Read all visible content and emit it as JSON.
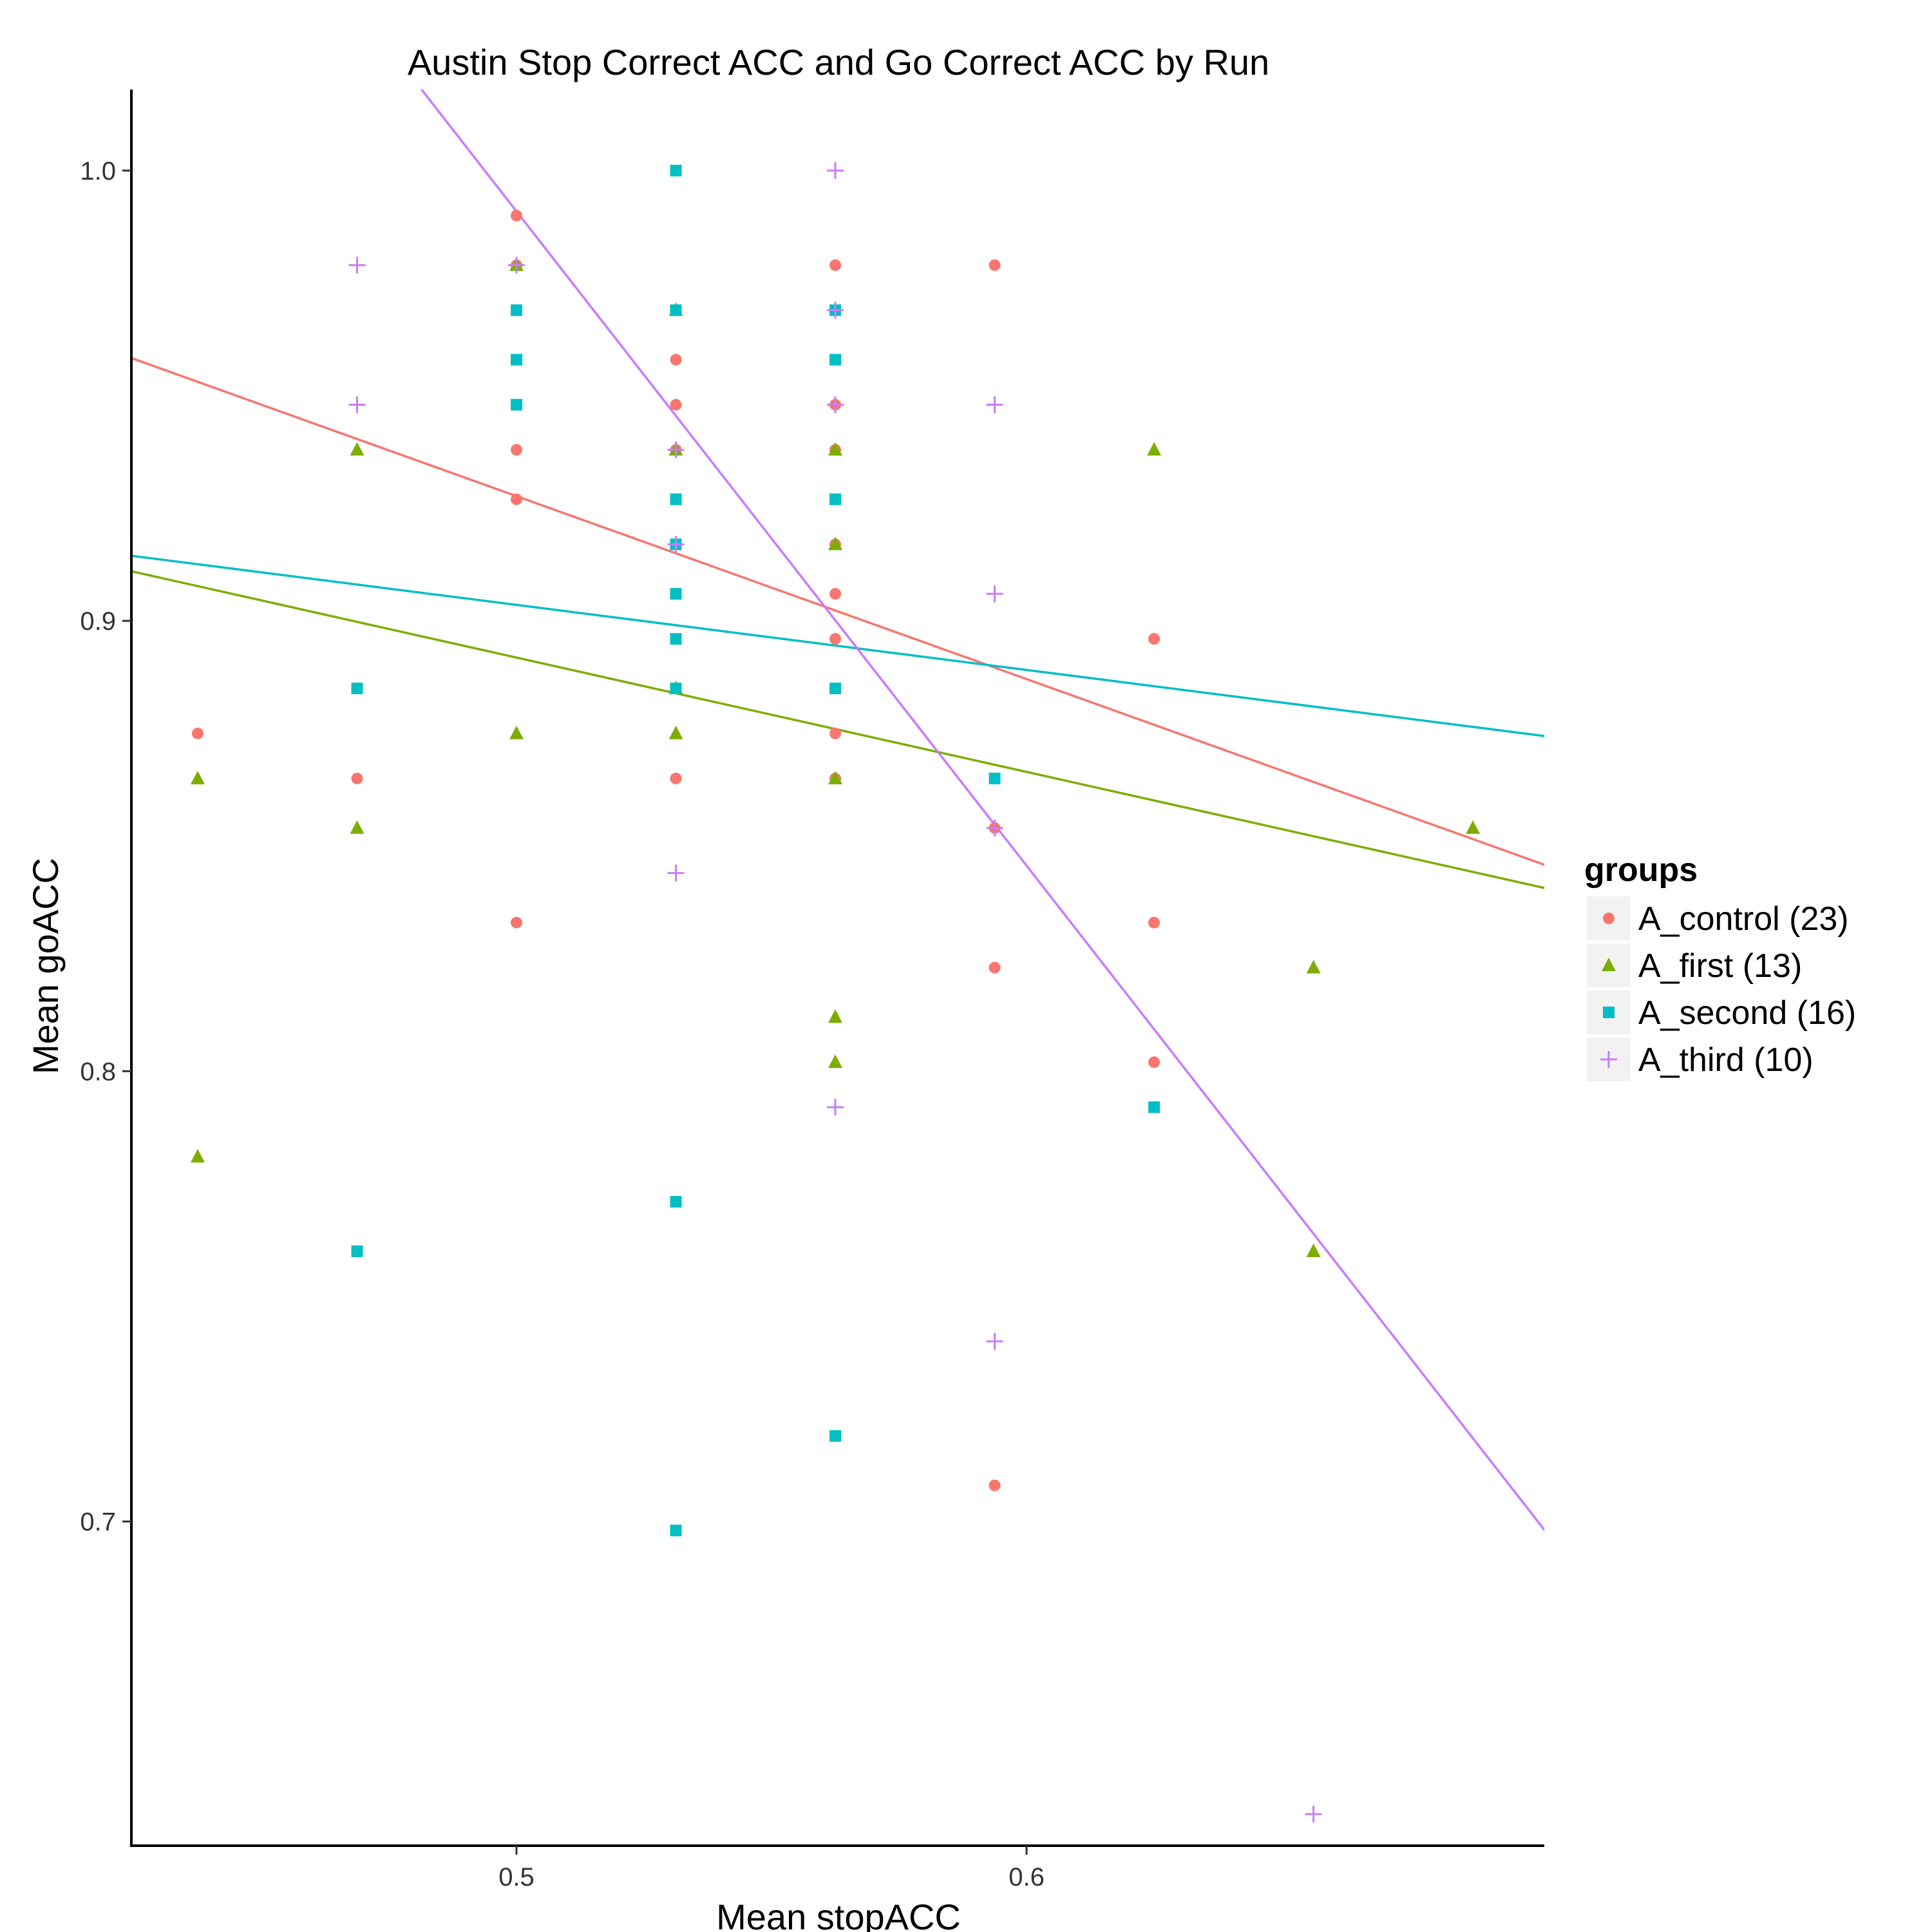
{
  "chart_data": {
    "type": "scatter",
    "title": "Austin Stop Correct ACC and Go Correct ACC by Run",
    "xlabel": "Mean stopACC",
    "ylabel": "Mean goACC",
    "xlim": [
      0.4245,
      0.7015
    ],
    "ylim": [
      0.628,
      1.018
    ],
    "xticks": [
      0.5,
      0.6
    ],
    "xtick_labels": [
      "0.5",
      "0.6"
    ],
    "yticks": [
      0.7,
      0.8,
      0.9,
      1.0
    ],
    "ytick_labels": [
      "0.7",
      "0.8",
      "0.9",
      "1.0"
    ],
    "grid": false,
    "legend": {
      "title": "groups",
      "position": "right"
    },
    "series": [
      {
        "name": "A_control (23)",
        "color": "#F8766D",
        "shape": "circle",
        "points": [
          [
            0.4375,
            0.875
          ],
          [
            0.46875,
            0.865
          ],
          [
            0.5,
            0.99
          ],
          [
            0.5,
            0.979
          ],
          [
            0.5,
            0.969
          ],
          [
            0.5,
            0.948
          ],
          [
            0.5,
            0.938
          ],
          [
            0.5,
            0.927
          ],
          [
            0.5,
            0.833
          ],
          [
            0.53125,
            0.969
          ],
          [
            0.53125,
            0.958
          ],
          [
            0.53125,
            0.948
          ],
          [
            0.53125,
            0.938
          ],
          [
            0.53125,
            0.927
          ],
          [
            0.53125,
            0.906
          ],
          [
            0.53125,
            0.865
          ],
          [
            0.5625,
            0.979
          ],
          [
            0.5625,
            0.958
          ],
          [
            0.5625,
            0.948
          ],
          [
            0.5625,
            0.938
          ],
          [
            0.5625,
            0.917
          ],
          [
            0.5625,
            0.906
          ],
          [
            0.5625,
            0.896
          ],
          [
            0.5625,
            0.875
          ],
          [
            0.5625,
            0.865
          ],
          [
            0.5625,
            0.719
          ],
          [
            0.59375,
            0.979
          ],
          [
            0.59375,
            0.854
          ],
          [
            0.59375,
            0.823
          ],
          [
            0.59375,
            0.708
          ],
          [
            0.625,
            0.896
          ],
          [
            0.625,
            0.833
          ],
          [
            0.625,
            0.802
          ]
        ],
        "fit": {
          "intercept": 1.1308,
          "slope": -0.4062
        }
      },
      {
        "name": "A_first (13)",
        "color": "#7CAE00",
        "shape": "triangle",
        "points": [
          [
            0.4375,
            0.865
          ],
          [
            0.4375,
            0.781
          ],
          [
            0.46875,
            0.938
          ],
          [
            0.46875,
            0.854
          ],
          [
            0.5,
            0.979
          ],
          [
            0.5,
            0.875
          ],
          [
            0.53125,
            0.969
          ],
          [
            0.53125,
            0.938
          ],
          [
            0.53125,
            0.885
          ],
          [
            0.53125,
            0.875
          ],
          [
            0.5625,
            0.938
          ],
          [
            0.5625,
            0.917
          ],
          [
            0.5625,
            0.865
          ],
          [
            0.5625,
            0.812
          ],
          [
            0.5625,
            0.802
          ],
          [
            0.625,
            0.938
          ],
          [
            0.65625,
            0.823
          ],
          [
            0.65625,
            0.76
          ],
          [
            0.6875,
            0.854
          ]
        ],
        "fit": {
          "intercept": 1.0188,
          "slope": -0.2539
        }
      },
      {
        "name": "A_second (16)",
        "color": "#00BFC4",
        "shape": "square",
        "points": [
          [
            0.46875,
            0.885
          ],
          [
            0.46875,
            0.76
          ],
          [
            0.5,
            0.969
          ],
          [
            0.5,
            0.958
          ],
          [
            0.5,
            0.948
          ],
          [
            0.53125,
            1.0
          ],
          [
            0.53125,
            0.969
          ],
          [
            0.53125,
            0.927
          ],
          [
            0.53125,
            0.917
          ],
          [
            0.53125,
            0.906
          ],
          [
            0.53125,
            0.896
          ],
          [
            0.53125,
            0.885
          ],
          [
            0.53125,
            0.771
          ],
          [
            0.53125,
            0.698
          ],
          [
            0.5625,
            0.969
          ],
          [
            0.5625,
            0.958
          ],
          [
            0.5625,
            0.927
          ],
          [
            0.5625,
            0.885
          ],
          [
            0.5625,
            0.719
          ],
          [
            0.59375,
            0.865
          ],
          [
            0.625,
            0.792
          ]
        ],
        "fit": {
          "intercept": 0.9758,
          "slope": -0.1445
        }
      },
      {
        "name": "A_third (10)",
        "color": "#C77CFF",
        "shape": "plus",
        "points": [
          [
            0.46875,
            0.979
          ],
          [
            0.46875,
            0.948
          ],
          [
            0.5,
            0.979
          ],
          [
            0.53125,
            0.938
          ],
          [
            0.53125,
            0.917
          ],
          [
            0.53125,
            0.844
          ],
          [
            0.5625,
            1.0
          ],
          [
            0.5625,
            0.969
          ],
          [
            0.5625,
            0.948
          ],
          [
            0.5625,
            0.792
          ],
          [
            0.59375,
            0.948
          ],
          [
            0.59375,
            0.906
          ],
          [
            0.59375,
            0.854
          ],
          [
            0.59375,
            0.74
          ],
          [
            0.65625,
            0.635
          ]
        ],
        "fit": {
          "intercept": 1.7175,
          "slope": -1.4531
        }
      }
    ]
  }
}
